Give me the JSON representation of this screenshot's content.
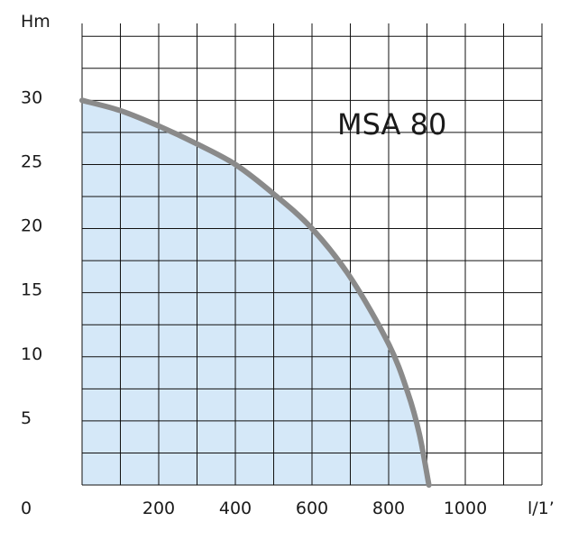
{
  "chart_data": {
    "type": "area",
    "title": "MSA 80",
    "xlabel": "l/1’",
    "ylabel": "Hm",
    "xlim": [
      0,
      1200
    ],
    "ylim": [
      0,
      36
    ],
    "x_ticks": [
      0,
      200,
      400,
      600,
      800,
      1000
    ],
    "y_ticks": [
      5,
      10,
      15,
      20,
      25,
      30
    ],
    "x_tick_labels": [
      "200",
      "400",
      "600",
      "800",
      "1000"
    ],
    "y_tick_labels": [
      "5",
      "10",
      "15",
      "20",
      "25",
      "30"
    ],
    "origin_label": "0",
    "grid": true,
    "legend": "none",
    "series": [
      {
        "x": [
          0,
          100,
          200,
          300,
          400,
          500,
          600,
          700,
          800,
          850,
          880,
          905
        ],
        "y": [
          30,
          29.2,
          28,
          26.6,
          25,
          22.7,
          20,
          16.2,
          11,
          7.2,
          4,
          0
        ]
      }
    ],
    "colors": {
      "fill": "#d5e8f8",
      "line": "#8a8a8a",
      "grid": "#111111"
    }
  }
}
